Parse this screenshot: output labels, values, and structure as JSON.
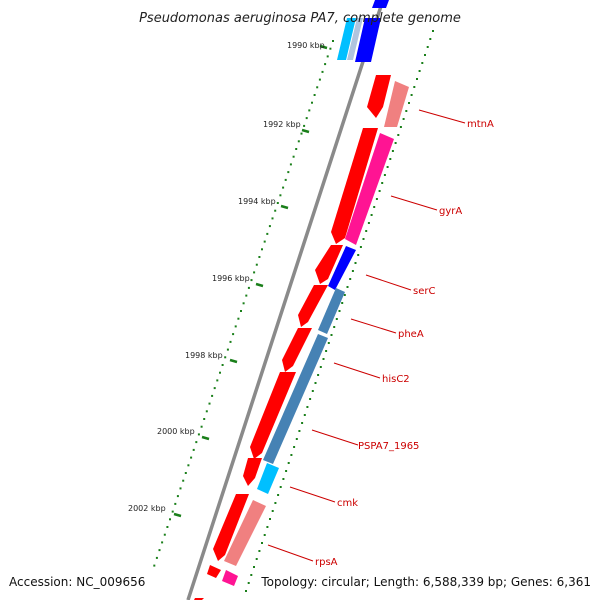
{
  "title": "Pseudomonas aeruginosa PA7, complete genome",
  "accession": "Accession: NC_009656",
  "summary": "Topology: circular; Length: 6,588,339 bp; Genes: 6,361",
  "ruler_labels": [
    "1990 kbp",
    "1992 kbp",
    "1994 kbp",
    "1996 kbp",
    "1998 kbp",
    "2000 kbp",
    "2002 kbp"
  ],
  "genes": [
    "mtnA",
    "gyrA",
    "serC",
    "pheA",
    "hisC2",
    "PSPA7_1965",
    "cmk",
    "rpsA"
  ],
  "colors": {
    "backbone": "#808080",
    "cds_forward": "#ff0000",
    "cds_light": "#f08080",
    "magenta": "#ff1493",
    "blue": "#0000ff",
    "steel_blue": "#4682b4",
    "cyan": "#00bfff",
    "tick_green": "#1a7f1a",
    "label_red": "#cc0000"
  }
}
